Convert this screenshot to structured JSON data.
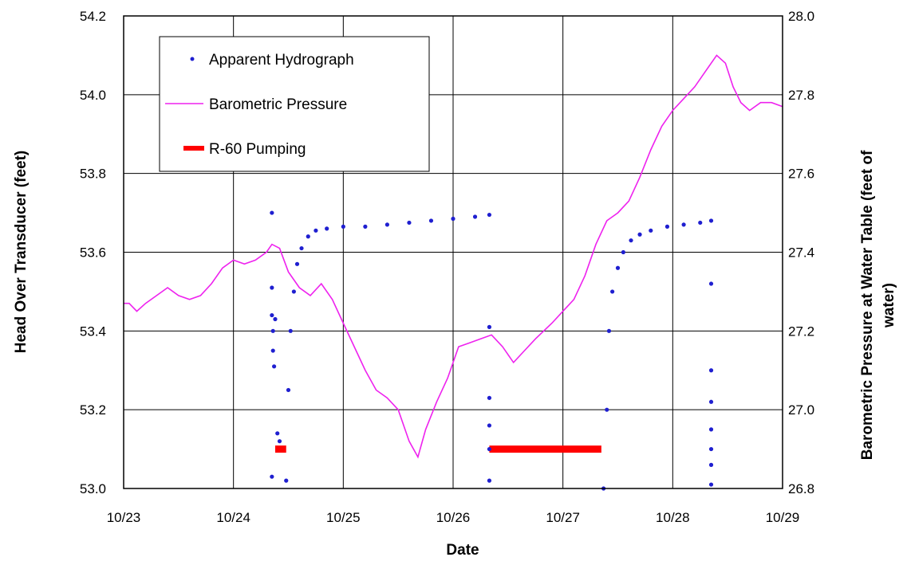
{
  "chart_data": {
    "type": "line",
    "xlabel": "Date",
    "ylabel_left": "Head Over Transducer (feet)",
    "ylabel_right": "Barometric Pressure at Water Table (feet of water)",
    "ylabel_right_lines": [
      "Barometric Pressure at Water Table (feet of",
      "water)"
    ],
    "x_ticks": [
      "10/23",
      "10/24",
      "10/25",
      "10/26",
      "10/27",
      "10/28",
      "10/29"
    ],
    "y_left_ticks": [
      "53.0",
      "53.2",
      "53.4",
      "53.6",
      "53.8",
      "54.0",
      "54.2"
    ],
    "y_right_ticks": [
      "26.8",
      "27.0",
      "27.2",
      "27.4",
      "27.6",
      "27.8",
      "28.0"
    ],
    "xlim": [
      0,
      6
    ],
    "ylim_left": [
      53.0,
      54.2
    ],
    "ylim_right": [
      26.8,
      28.0
    ],
    "grid": true,
    "legend_position": "top-left",
    "series": [
      {
        "name": "Apparent Hydrograph",
        "axis": "left",
        "style": "points",
        "color": "#1f1fd0",
        "points": [
          [
            1.35,
            53.7
          ],
          [
            1.35,
            53.51
          ],
          [
            1.35,
            53.44
          ],
          [
            1.36,
            53.4
          ],
          [
            1.36,
            53.35
          ],
          [
            1.37,
            53.31
          ],
          [
            1.38,
            53.43
          ],
          [
            1.35,
            53.03
          ],
          [
            1.4,
            53.14
          ],
          [
            1.42,
            53.12
          ],
          [
            1.48,
            53.02
          ],
          [
            1.5,
            53.25
          ],
          [
            1.52,
            53.4
          ],
          [
            1.55,
            53.5
          ],
          [
            1.58,
            53.57
          ],
          [
            1.62,
            53.61
          ],
          [
            1.68,
            53.64
          ],
          [
            1.75,
            53.655
          ],
          [
            1.85,
            53.66
          ],
          [
            2.0,
            53.665
          ],
          [
            2.2,
            53.665
          ],
          [
            2.4,
            53.67
          ],
          [
            2.6,
            53.675
          ],
          [
            2.8,
            53.68
          ],
          [
            3.0,
            53.685
          ],
          [
            3.2,
            53.69
          ],
          [
            3.33,
            53.695
          ],
          [
            3.33,
            53.41
          ],
          [
            3.33,
            53.23
          ],
          [
            3.33,
            53.16
          ],
          [
            3.33,
            53.1
          ],
          [
            3.33,
            53.02
          ],
          [
            4.37,
            53.0
          ],
          [
            4.4,
            53.2
          ],
          [
            4.42,
            53.4
          ],
          [
            4.45,
            53.5
          ],
          [
            4.5,
            53.56
          ],
          [
            4.55,
            53.6
          ],
          [
            4.62,
            53.63
          ],
          [
            4.7,
            53.645
          ],
          [
            4.8,
            53.655
          ],
          [
            4.95,
            53.665
          ],
          [
            5.1,
            53.67
          ],
          [
            5.25,
            53.675
          ],
          [
            5.35,
            53.68
          ],
          [
            5.35,
            53.52
          ],
          [
            5.35,
            53.3
          ],
          [
            5.35,
            53.22
          ],
          [
            5.35,
            53.15
          ],
          [
            5.35,
            53.1
          ],
          [
            5.35,
            53.06
          ],
          [
            5.35,
            53.01
          ]
        ]
      },
      {
        "name": "Barometric Pressure",
        "axis": "right",
        "style": "line",
        "color": "#ee22ee",
        "points": [
          [
            0.0,
            27.27
          ],
          [
            0.05,
            27.27
          ],
          [
            0.12,
            27.25
          ],
          [
            0.2,
            27.27
          ],
          [
            0.3,
            27.29
          ],
          [
            0.4,
            27.31
          ],
          [
            0.5,
            27.29
          ],
          [
            0.6,
            27.28
          ],
          [
            0.7,
            27.29
          ],
          [
            0.8,
            27.32
          ],
          [
            0.9,
            27.36
          ],
          [
            1.0,
            27.38
          ],
          [
            1.1,
            27.37
          ],
          [
            1.2,
            27.38
          ],
          [
            1.3,
            27.4
          ],
          [
            1.35,
            27.42
          ],
          [
            1.42,
            27.41
          ],
          [
            1.5,
            27.35
          ],
          [
            1.6,
            27.31
          ],
          [
            1.7,
            27.29
          ],
          [
            1.8,
            27.32
          ],
          [
            1.9,
            27.28
          ],
          [
            2.0,
            27.22
          ],
          [
            2.1,
            27.16
          ],
          [
            2.2,
            27.1
          ],
          [
            2.3,
            27.05
          ],
          [
            2.4,
            27.03
          ],
          [
            2.5,
            27.0
          ],
          [
            2.6,
            26.92
          ],
          [
            2.68,
            26.88
          ],
          [
            2.75,
            26.95
          ],
          [
            2.85,
            27.02
          ],
          [
            2.95,
            27.08
          ],
          [
            3.05,
            27.16
          ],
          [
            3.15,
            27.17
          ],
          [
            3.25,
            27.18
          ],
          [
            3.35,
            27.19
          ],
          [
            3.45,
            27.16
          ],
          [
            3.55,
            27.12
          ],
          [
            3.65,
            27.15
          ],
          [
            3.75,
            27.18
          ],
          [
            3.9,
            27.22
          ],
          [
            4.0,
            27.25
          ],
          [
            4.1,
            27.28
          ],
          [
            4.2,
            27.34
          ],
          [
            4.3,
            27.42
          ],
          [
            4.4,
            27.48
          ],
          [
            4.5,
            27.5
          ],
          [
            4.6,
            27.53
          ],
          [
            4.7,
            27.59
          ],
          [
            4.8,
            27.66
          ],
          [
            4.9,
            27.72
          ],
          [
            5.0,
            27.76
          ],
          [
            5.1,
            27.79
          ],
          [
            5.2,
            27.82
          ],
          [
            5.3,
            27.86
          ],
          [
            5.4,
            27.9
          ],
          [
            5.48,
            27.88
          ],
          [
            5.55,
            27.82
          ],
          [
            5.62,
            27.78
          ],
          [
            5.7,
            27.76
          ],
          [
            5.8,
            27.78
          ],
          [
            5.9,
            27.78
          ],
          [
            6.0,
            27.77
          ]
        ]
      },
      {
        "name": "R-60 Pumping",
        "axis": "left",
        "style": "segments",
        "color": "#ff0000",
        "segments": [
          [
            1.38,
            1.48,
            53.1
          ],
          [
            3.33,
            4.35,
            53.1
          ]
        ]
      }
    ]
  }
}
